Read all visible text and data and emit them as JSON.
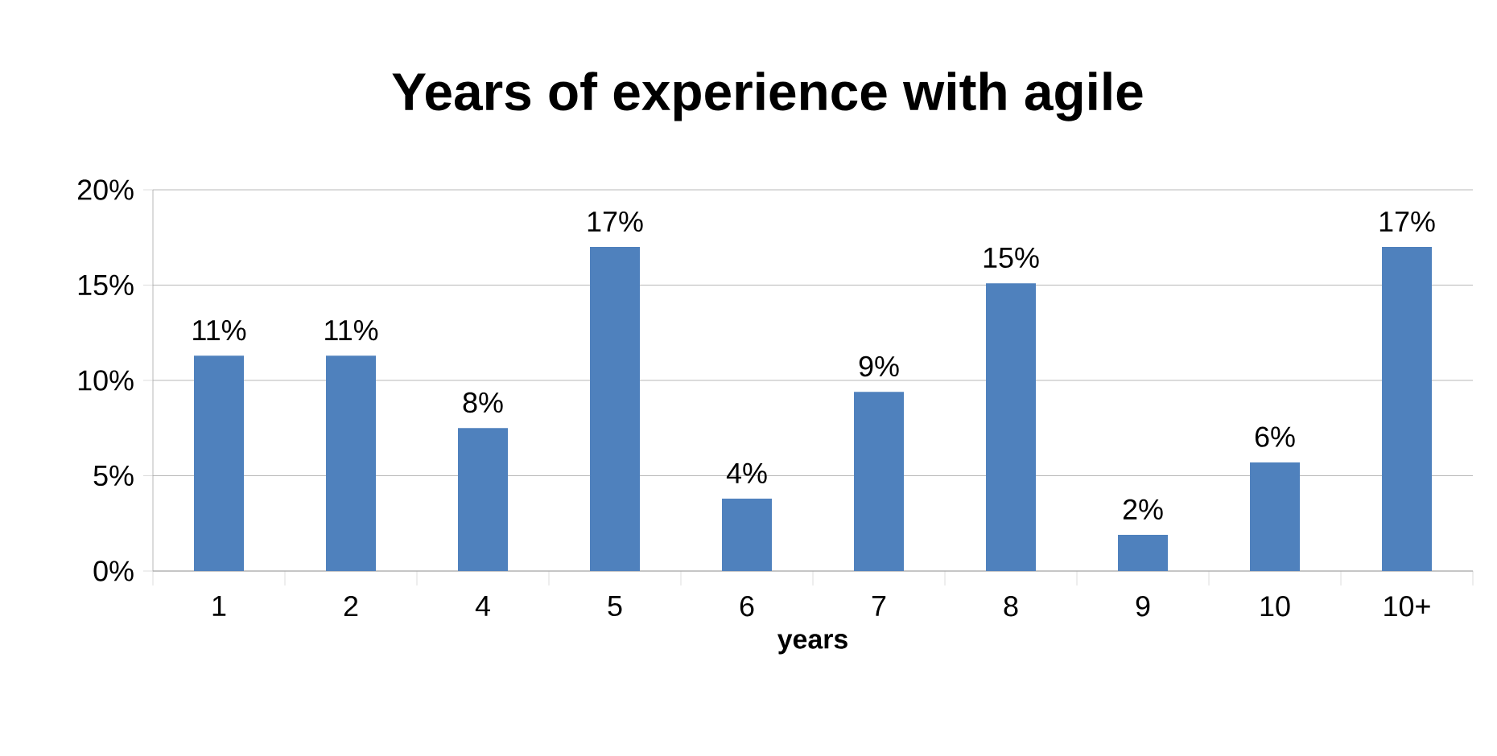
{
  "chart_data": {
    "type": "bar",
    "title": "Years of experience with agile",
    "xlabel": "years",
    "categories": [
      "1",
      "2",
      "4",
      "5",
      "6",
      "7",
      "8",
      "9",
      "10",
      "10+"
    ],
    "values": [
      11.3,
      11.3,
      7.5,
      17,
      3.8,
      9.4,
      15.1,
      1.9,
      5.7,
      17
    ],
    "value_labels": [
      "11%",
      "11%",
      "8%",
      "17%",
      "4%",
      "9%",
      "15%",
      "2%",
      "6%",
      "17%"
    ],
    "color": "#4f81bd",
    "ylim": [
      0,
      20
    ],
    "yticks": [
      {
        "value": 0,
        "label": "0%"
      },
      {
        "value": 5,
        "label": "5%"
      },
      {
        "value": 10,
        "label": "10%"
      },
      {
        "value": 15,
        "label": "15%"
      },
      {
        "value": 20,
        "label": "20%"
      }
    ],
    "grid": "y"
  }
}
